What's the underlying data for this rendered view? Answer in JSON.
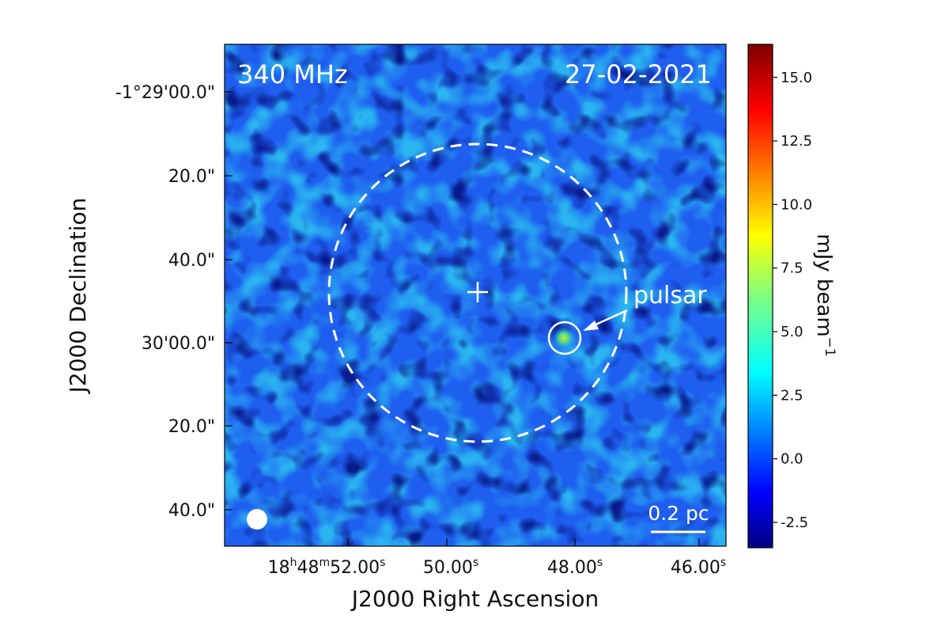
{
  "image": {
    "frequency_label": "340 MHz",
    "date_label": "27-02-2021",
    "source_label": "pulsar",
    "scale_bar_label": "0.2 pc",
    "x_axis_label": "J2000 Right Ascension",
    "y_axis_label": "J2000 Declination",
    "colorbar_label": "mJy beam",
    "colorbar_label_exponent": "−1",
    "colormap": "jet",
    "dec_ticks": [
      "-1°29'00.0\"",
      "20.0\"",
      "40.0\"",
      "30'00.0\"",
      "20.0\"",
      "40.0\""
    ],
    "ra_ticks": [
      {
        "base": "18",
        "h": "h",
        "mid": "48",
        "m": "m",
        "sec": "52.00",
        "s": "s"
      },
      {
        "base": "",
        "h": "",
        "mid": "",
        "m": "",
        "sec": "50.00",
        "s": "s"
      },
      {
        "base": "",
        "h": "",
        "mid": "",
        "m": "",
        "sec": "48.00",
        "s": "s"
      },
      {
        "base": "",
        "h": "",
        "mid": "",
        "m": "",
        "sec": "46.00",
        "s": "s"
      }
    ],
    "colorbar_ticks": [
      "15.0",
      "12.5",
      "10.0",
      "7.5",
      "5.0",
      "2.5",
      "0.0",
      "-2.5"
    ],
    "colorbar_range": [
      -3.5,
      16.3
    ]
  }
}
